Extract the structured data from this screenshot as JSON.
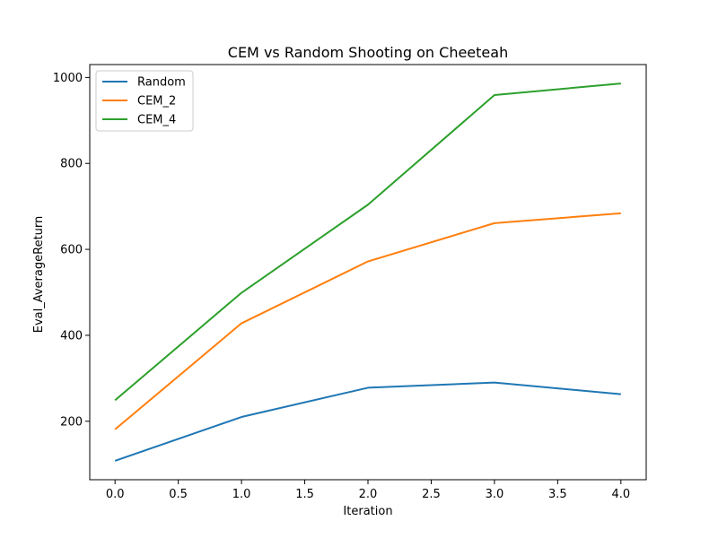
{
  "chart_data": {
    "type": "line",
    "title": "CEM vs Random Shooting on Cheeteah",
    "xlabel": "Iteration",
    "ylabel": "Eval_AverageReturn",
    "x": [
      0,
      1,
      2,
      3,
      4
    ],
    "xlim": [
      -0.2,
      4.2
    ],
    "ylim": [
      64,
      1030
    ],
    "xticks": [
      0.0,
      0.5,
      1.0,
      1.5,
      2.0,
      2.5,
      3.0,
      3.5,
      4.0
    ],
    "xtick_labels": [
      "0.0",
      "0.5",
      "1.0",
      "1.5",
      "2.0",
      "2.5",
      "3.0",
      "3.5",
      "4.0"
    ],
    "yticks": [
      200,
      400,
      600,
      800,
      1000
    ],
    "ytick_labels": [
      "200",
      "400",
      "600",
      "800",
      "1000"
    ],
    "grid": false,
    "legend_position": "upper-left",
    "series": [
      {
        "name": "Random",
        "color": "#1f77b4",
        "values": [
          108,
          210,
          278,
          290,
          263
        ]
      },
      {
        "name": "CEM_2",
        "color": "#ff7f0e",
        "values": [
          181,
          428,
          572,
          661,
          684
        ]
      },
      {
        "name": "CEM_4",
        "color": "#2ca02c",
        "values": [
          249,
          499,
          704,
          959,
          986
        ]
      }
    ]
  }
}
